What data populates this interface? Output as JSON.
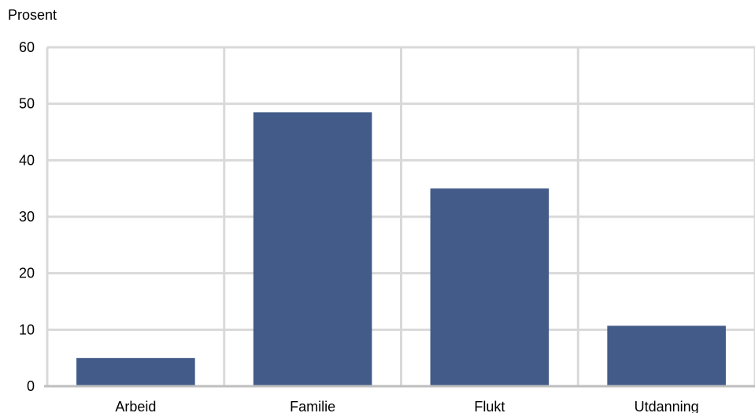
{
  "chart_data": {
    "type": "bar",
    "title": "",
    "ylabel": "Prosent",
    "xlabel": "",
    "categories": [
      "Arbeid",
      "Familie",
      "Flukt",
      "Utdanning"
    ],
    "values": [
      5,
      48.5,
      35,
      10.7
    ],
    "ylim": [
      0,
      60
    ],
    "yticks": [
      0,
      10,
      20,
      30,
      40,
      50,
      60
    ],
    "grid": true,
    "legend": "none",
    "colors": {
      "bar": "#425B88",
      "grid": "#D9D9D9",
      "axis": "#BFBFBF"
    }
  }
}
